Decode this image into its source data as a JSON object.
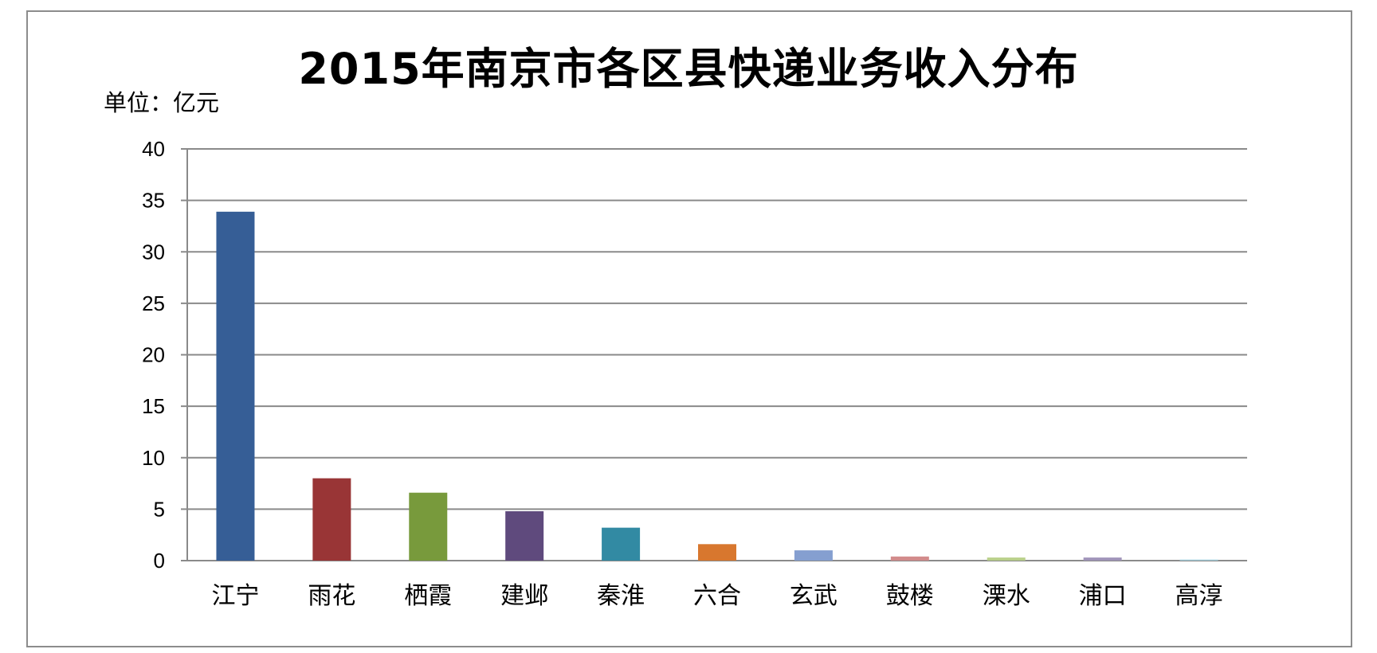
{
  "chart_data": {
    "type": "bar",
    "title": "2015年南京市各区县快递业务收入分布",
    "unit_label": "单位：亿元",
    "categories": [
      "江宁",
      "雨花",
      "栖霞",
      "建邺",
      "秦淮",
      "六合",
      "玄武",
      "鼓楼",
      "溧水",
      "浦口",
      "高淳"
    ],
    "values": [
      33.9,
      8.0,
      6.6,
      4.8,
      3.2,
      1.6,
      1.0,
      0.4,
      0.3,
      0.3,
      0.1
    ],
    "colors": [
      "#365e96",
      "#993536",
      "#789a3c",
      "#5f4a7d",
      "#328aa3",
      "#d8772e",
      "#859fd0",
      "#d28b8b",
      "#b9d08a",
      "#a094b9",
      "#9fcbd8"
    ],
    "yticks": [
      0,
      5,
      10,
      15,
      20,
      25,
      30,
      35,
      40
    ],
    "ylim": [
      0,
      40
    ],
    "xlabel": "",
    "ylabel": "",
    "grid": true,
    "legend": "none"
  }
}
